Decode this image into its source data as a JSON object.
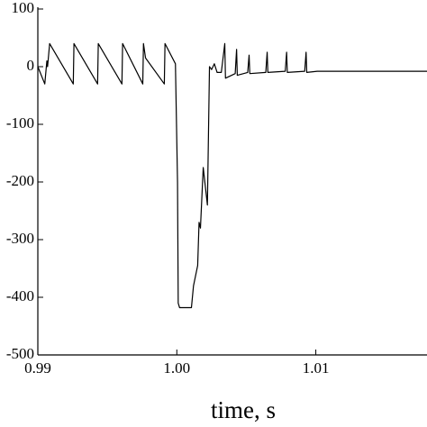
{
  "chart_data": {
    "type": "line",
    "x_label": "time, s",
    "xlim": [
      0.99,
      1.018
    ],
    "ylim": [
      -500,
      100
    ],
    "xticks": [
      0.99,
      {
        "value": 1,
        "label": "1.00"
      },
      1.01
    ],
    "yticks": [
      100,
      0,
      -100,
      -200,
      -300,
      -400,
      -500
    ],
    "series": [
      {
        "color": "#000000",
        "x": [
          0.99,
          0.9905,
          0.99065,
          0.9907,
          0.99085,
          0.99255,
          0.9926,
          0.9943,
          0.99435,
          0.99605,
          0.9961,
          0.99755,
          0.9976,
          0.99775,
          0.9991,
          0.99915,
          0.9999,
          1.00005,
          1.0001,
          1.0002,
          1.00105,
          1.0012,
          1.0015,
          1.0016,
          1.0017,
          1.0019,
          1.0022,
          1.00235,
          1.0025,
          1.0027,
          1.0029,
          1.0032,
          1.00345,
          1.0035,
          1.0042,
          1.0043,
          1.00435,
          1.0051,
          1.0052,
          1.00525,
          1.0064,
          1.0065,
          1.00655,
          1.0078,
          1.0079,
          1.00795,
          1.0092,
          1.0093,
          1.00935,
          1.0101,
          1.0105,
          1.018
        ],
        "values": [
          0,
          -30,
          10,
          0,
          40,
          -30,
          40,
          -30,
          40,
          -30,
          40,
          -30,
          40,
          15,
          -30,
          40,
          5,
          -200,
          -410,
          -418,
          -418,
          -380,
          -345,
          -270,
          -280,
          -175,
          -240,
          0,
          -5,
          5,
          -10,
          -10,
          40,
          -20,
          -12,
          30,
          -15,
          -10,
          20,
          -12,
          -10,
          25,
          -10,
          -8,
          25,
          -10,
          -8,
          25,
          -10,
          -8,
          -8,
          -8
        ]
      }
    ]
  }
}
